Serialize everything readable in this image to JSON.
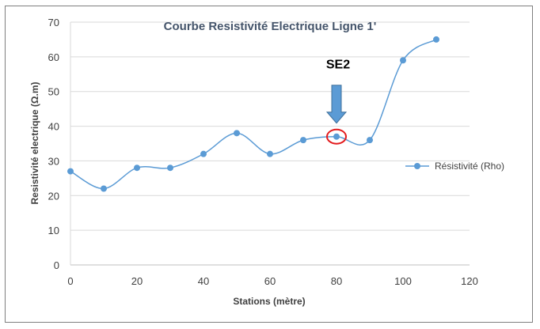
{
  "chart_data": {
    "type": "line",
    "title": "Courbe Resistivité Electrique Ligne 1'",
    "xlabel": "Stations (mètre)",
    "ylabel": "Resistivité electrique (Ω.m)",
    "xlim": [
      0,
      120
    ],
    "ylim": [
      0,
      70
    ],
    "x_ticks": [
      0,
      20,
      40,
      60,
      80,
      100,
      120
    ],
    "y_ticks": [
      0,
      10,
      20,
      30,
      40,
      50,
      60,
      70
    ],
    "grid": "horizontal",
    "smooth": true,
    "legend_position": "right",
    "series": [
      {
        "name": "Résistivité (Rho)",
        "color": "#5b9bd5",
        "x": [
          0,
          10,
          20,
          30,
          40,
          50,
          60,
          70,
          80,
          90,
          100,
          110
        ],
        "y": [
          27,
          22,
          28,
          28,
          32,
          38,
          32,
          36,
          37,
          36,
          59,
          65
        ]
      }
    ],
    "annotations": [
      {
        "text": "SE2",
        "x": 80,
        "y": 37,
        "marker": "red-circle-and-down-arrow",
        "arrow_color": "#5b9bd5",
        "circle_color": "#e31a1c"
      }
    ]
  }
}
